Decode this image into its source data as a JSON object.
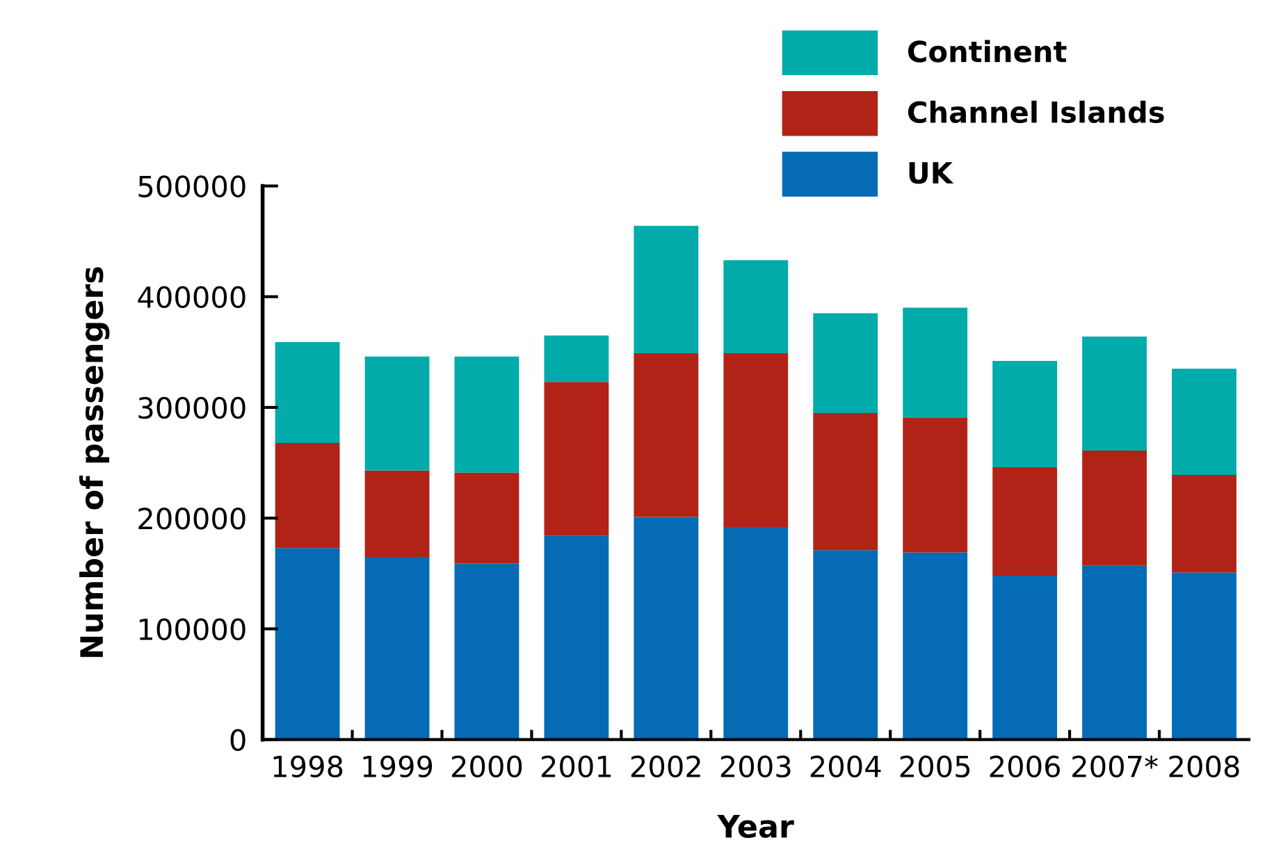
{
  "chart_data": {
    "type": "bar",
    "stacked": true,
    "xlabel": "Year",
    "ylabel": "Number of passengers",
    "categories": [
      "1998",
      "1999",
      "2000",
      "2001",
      "2002",
      "2003",
      "2004",
      "2005",
      "2006",
      "2007*",
      "2008"
    ],
    "series": [
      {
        "name": "UK",
        "color": "#056bb5",
        "values": [
          173000,
          165000,
          159000,
          184000,
          201000,
          192000,
          171000,
          169000,
          148000,
          157000,
          151000
        ]
      },
      {
        "name": "Channel Islands",
        "color": "#b22317",
        "values": [
          95000,
          78000,
          82000,
          139000,
          148000,
          157000,
          124000,
          122000,
          98000,
          104000,
          88000
        ]
      },
      {
        "name": "Continent",
        "color": "#00aba9",
        "values": [
          91000,
          103000,
          105000,
          42000,
          115000,
          84000,
          90000,
          99000,
          96000,
          103000,
          96000
        ]
      }
    ],
    "ylim": [
      0,
      500000
    ],
    "yticks": [
      0,
      100000,
      200000,
      300000,
      400000,
      500000
    ],
    "grid": false,
    "legend": "top right"
  }
}
